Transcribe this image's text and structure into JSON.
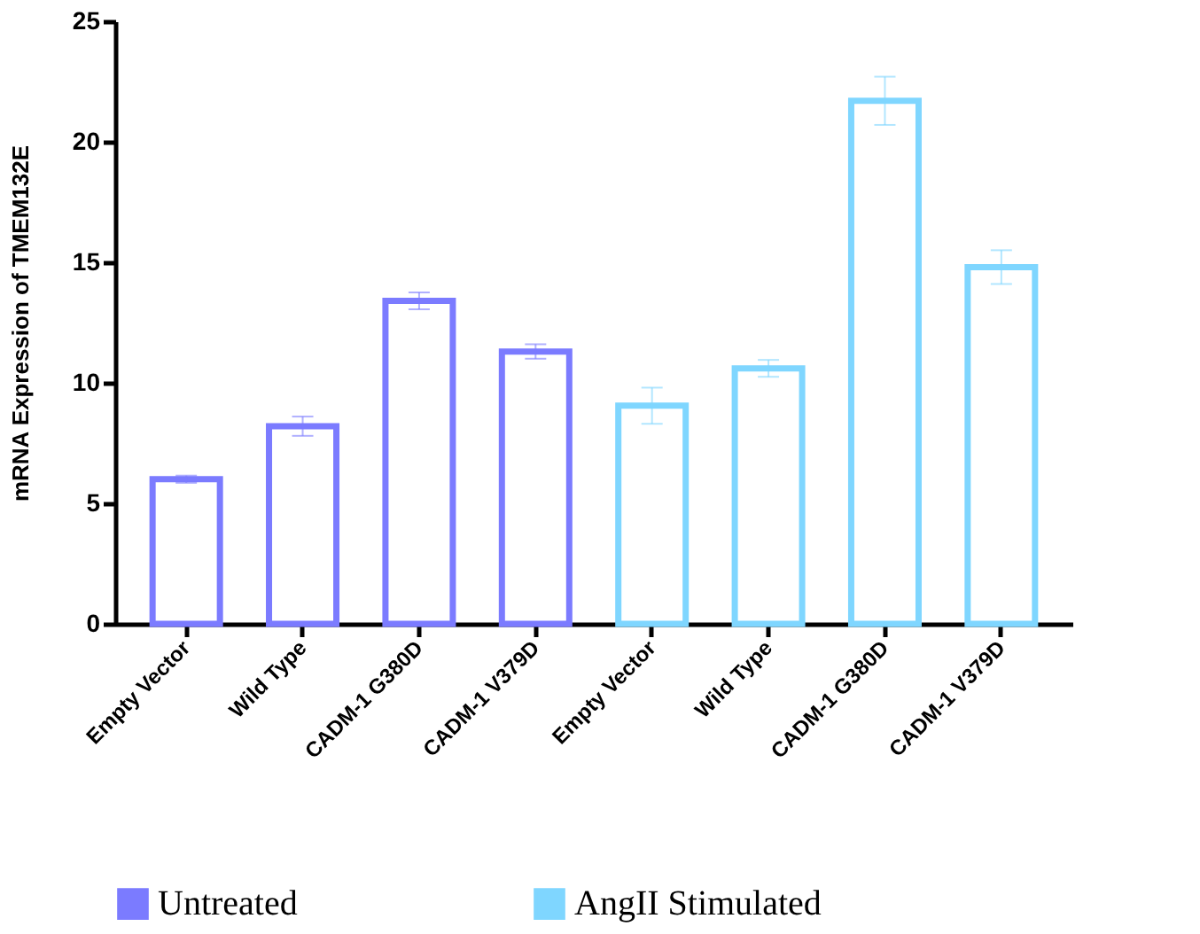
{
  "chart_data": {
    "type": "bar",
    "ylabel": "mRNA Expression of TMEM132E",
    "categories": [
      "Empty Vector",
      "Wild Type",
      "CADM-1 G380D",
      "CADM-1 V379D",
      "Empty Vector",
      "Wild Type",
      "CADM-1 G380D",
      "CADM-1 V379D"
    ],
    "series": [
      {
        "name": "Untreated",
        "color": "#7b7bff",
        "values": [
          6.0,
          8.2,
          13.4,
          11.3,
          null,
          null,
          null,
          null
        ],
        "errors": [
          0.15,
          0.4,
          0.35,
          0.3,
          null,
          null,
          null,
          null
        ]
      },
      {
        "name": "AngII Stimulated",
        "color": "#7fd6ff",
        "values": [
          null,
          null,
          null,
          null,
          9.05,
          10.6,
          21.7,
          14.8
        ],
        "errors": [
          null,
          null,
          null,
          null,
          0.75,
          0.35,
          1.0,
          0.7
        ]
      }
    ],
    "ylim": [
      0,
      25
    ],
    "yticks": [
      0,
      5,
      10,
      15,
      20,
      25
    ],
    "grid": false,
    "legend": "bottom"
  }
}
